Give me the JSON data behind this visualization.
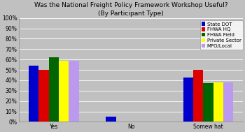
{
  "title": "Was the National Freight Policy Framework Workshop Useful?\n(By Participant Type)",
  "categories": [
    "Yes",
    "No",
    "Somew hat"
  ],
  "series": [
    {
      "label": "State DOT",
      "color": "#0000CC",
      "values": [
        54,
        5,
        43
      ]
    },
    {
      "label": "FHWA HQ",
      "color": "#DD0000",
      "values": [
        50,
        0,
        50
      ]
    },
    {
      "label": "FHWA Field",
      "color": "#006600",
      "values": [
        62,
        0,
        37
      ]
    },
    {
      "label": "Private Sector",
      "color": "#FFFF00",
      "values": [
        59,
        0,
        38
      ]
    },
    {
      "label": "MPO/Local",
      "color": "#BB99EE",
      "values": [
        59,
        0,
        38
      ]
    }
  ],
  "ylim": [
    0,
    100
  ],
  "yticks": [
    0,
    10,
    20,
    30,
    40,
    50,
    60,
    70,
    80,
    90,
    100
  ],
  "ytick_labels": [
    "0%",
    "10%",
    "20%",
    "30%",
    "40%",
    "50%",
    "60%",
    "70%",
    "80%",
    "90%",
    "100%"
  ],
  "background_color": "#C0C0C0",
  "plot_bg_color": "#C0C0C0",
  "title_fontsize": 6.5,
  "tick_fontsize": 5.5,
  "legend_fontsize": 5.0,
  "bar_width": 0.13,
  "x_positions": [
    0,
    1.0,
    2.0
  ]
}
